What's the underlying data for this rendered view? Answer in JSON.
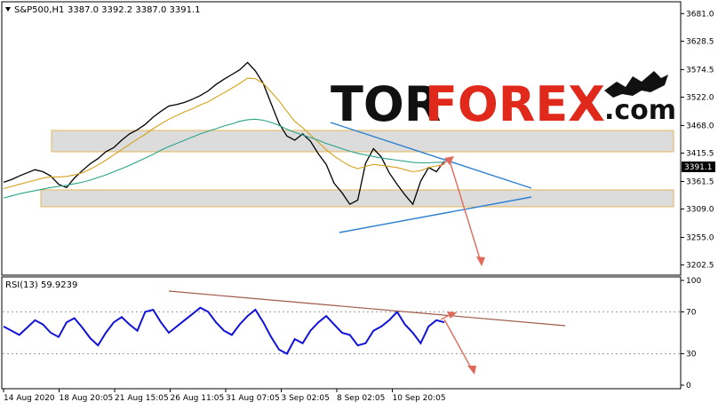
{
  "header": {
    "symbol_label": "S&P500,H1",
    "ohlc_label": "3387.0 3392.2 3387.0 3391.1"
  },
  "brand": {
    "logo_left": "TOR",
    "logo_right": "FOREX",
    "logo_suffix": ".com",
    "colors": {
      "tor": "#111111",
      "forex": "#e0281b",
      "suffix": "#111111"
    }
  },
  "colors": {
    "price_line": "#000000",
    "candle_down": "#b11a0e",
    "ma_fast": "#d4a21a",
    "ma_slow": "#2aa38a",
    "zone_fill": "#d9d9d9",
    "zone_border": "#e0b04a",
    "trend_line": "#2c7fd0",
    "forecast_arrow": "#e06a5a",
    "rsi_line": "#1212d8",
    "rsi_trend": "#a05a4a",
    "current_price_box": "#000000"
  },
  "chart_data": [
    {
      "type": "line",
      "title": "",
      "x_tick_labels": [
        "14 Aug 2020",
        "18 Aug 20:05",
        "21 Aug 15:05",
        "26 Aug 11:05",
        "31 Aug 07:05",
        "3 Sep 02:05",
        "8 Sep 02:05",
        "10 Sep 20:05"
      ],
      "y_tick_labels": [
        "3681.0",
        "3628.5",
        "3574.5",
        "3522.0",
        "3468.0",
        "3415.5",
        "3361.5",
        "3309.0",
        "3255.0",
        "3202.5"
      ],
      "ylim": [
        3190,
        3690
      ],
      "current_price": "3391.1",
      "series": [
        {
          "values": [
            3360,
            3365,
            3372,
            3378,
            3384,
            3380,
            3372,
            3356,
            3350,
            3368,
            3382,
            3395,
            3405,
            3418,
            3426,
            3440,
            3452,
            3460,
            3470,
            3484,
            3495,
            3505,
            3508,
            3512,
            3518,
            3525,
            3534,
            3546,
            3556,
            3565,
            3574,
            3588,
            3572,
            3548,
            3510,
            3472,
            3448,
            3440,
            3452,
            3438,
            3414,
            3394,
            3358,
            3340,
            3318,
            3326,
            3396,
            3424,
            3408,
            3378,
            3356,
            3336,
            3318,
            3362,
            3388,
            3380,
            3400
          ]
        },
        {
          "values": [
            3348,
            3352,
            3356,
            3360,
            3364,
            3368,
            3370,
            3370,
            3371,
            3374,
            3378,
            3385,
            3393,
            3402,
            3412,
            3422,
            3432,
            3442,
            3451,
            3462,
            3471,
            3480,
            3487,
            3494,
            3500,
            3507,
            3513,
            3522,
            3530,
            3539,
            3548,
            3558,
            3557,
            3548,
            3532,
            3515,
            3495,
            3476,
            3464,
            3450,
            3436,
            3422,
            3410,
            3400,
            3391,
            3386,
            3390,
            3394,
            3392,
            3390,
            3388,
            3384,
            3380,
            3382,
            3388,
            3391,
            3394
          ]
        },
        {
          "values": [
            3330,
            3334,
            3338,
            3341,
            3344,
            3347,
            3350,
            3352,
            3354,
            3357,
            3360,
            3364,
            3369,
            3374,
            3380,
            3386,
            3392,
            3399,
            3406,
            3413,
            3421,
            3428,
            3434,
            3440,
            3446,
            3452,
            3457,
            3462,
            3467,
            3471,
            3476,
            3479,
            3480,
            3478,
            3474,
            3468,
            3461,
            3455,
            3450,
            3445,
            3440,
            3434,
            3429,
            3424,
            3419,
            3415,
            3412,
            3409,
            3406,
            3404,
            3402,
            3400,
            3398,
            3397,
            3397,
            3398,
            3398
          ]
        }
      ]
    },
    {
      "type": "line",
      "title": "RSI(13) 59.9239",
      "ylim": [
        0,
        100
      ],
      "y_tick_labels": [
        "100",
        "70",
        "30",
        "0"
      ],
      "series": [
        {
          "values": [
            56,
            52,
            48,
            55,
            62,
            58,
            50,
            46,
            60,
            64,
            55,
            45,
            38,
            50,
            60,
            65,
            58,
            52,
            70,
            72,
            60,
            50,
            56,
            62,
            68,
            74,
            70,
            60,
            52,
            48,
            58,
            66,
            72,
            60,
            46,
            34,
            30,
            44,
            40,
            52,
            60,
            66,
            58,
            50,
            48,
            38,
            40,
            52,
            56,
            62,
            70,
            58,
            50,
            40,
            56,
            62,
            60
          ]
        }
      ]
    }
  ]
}
